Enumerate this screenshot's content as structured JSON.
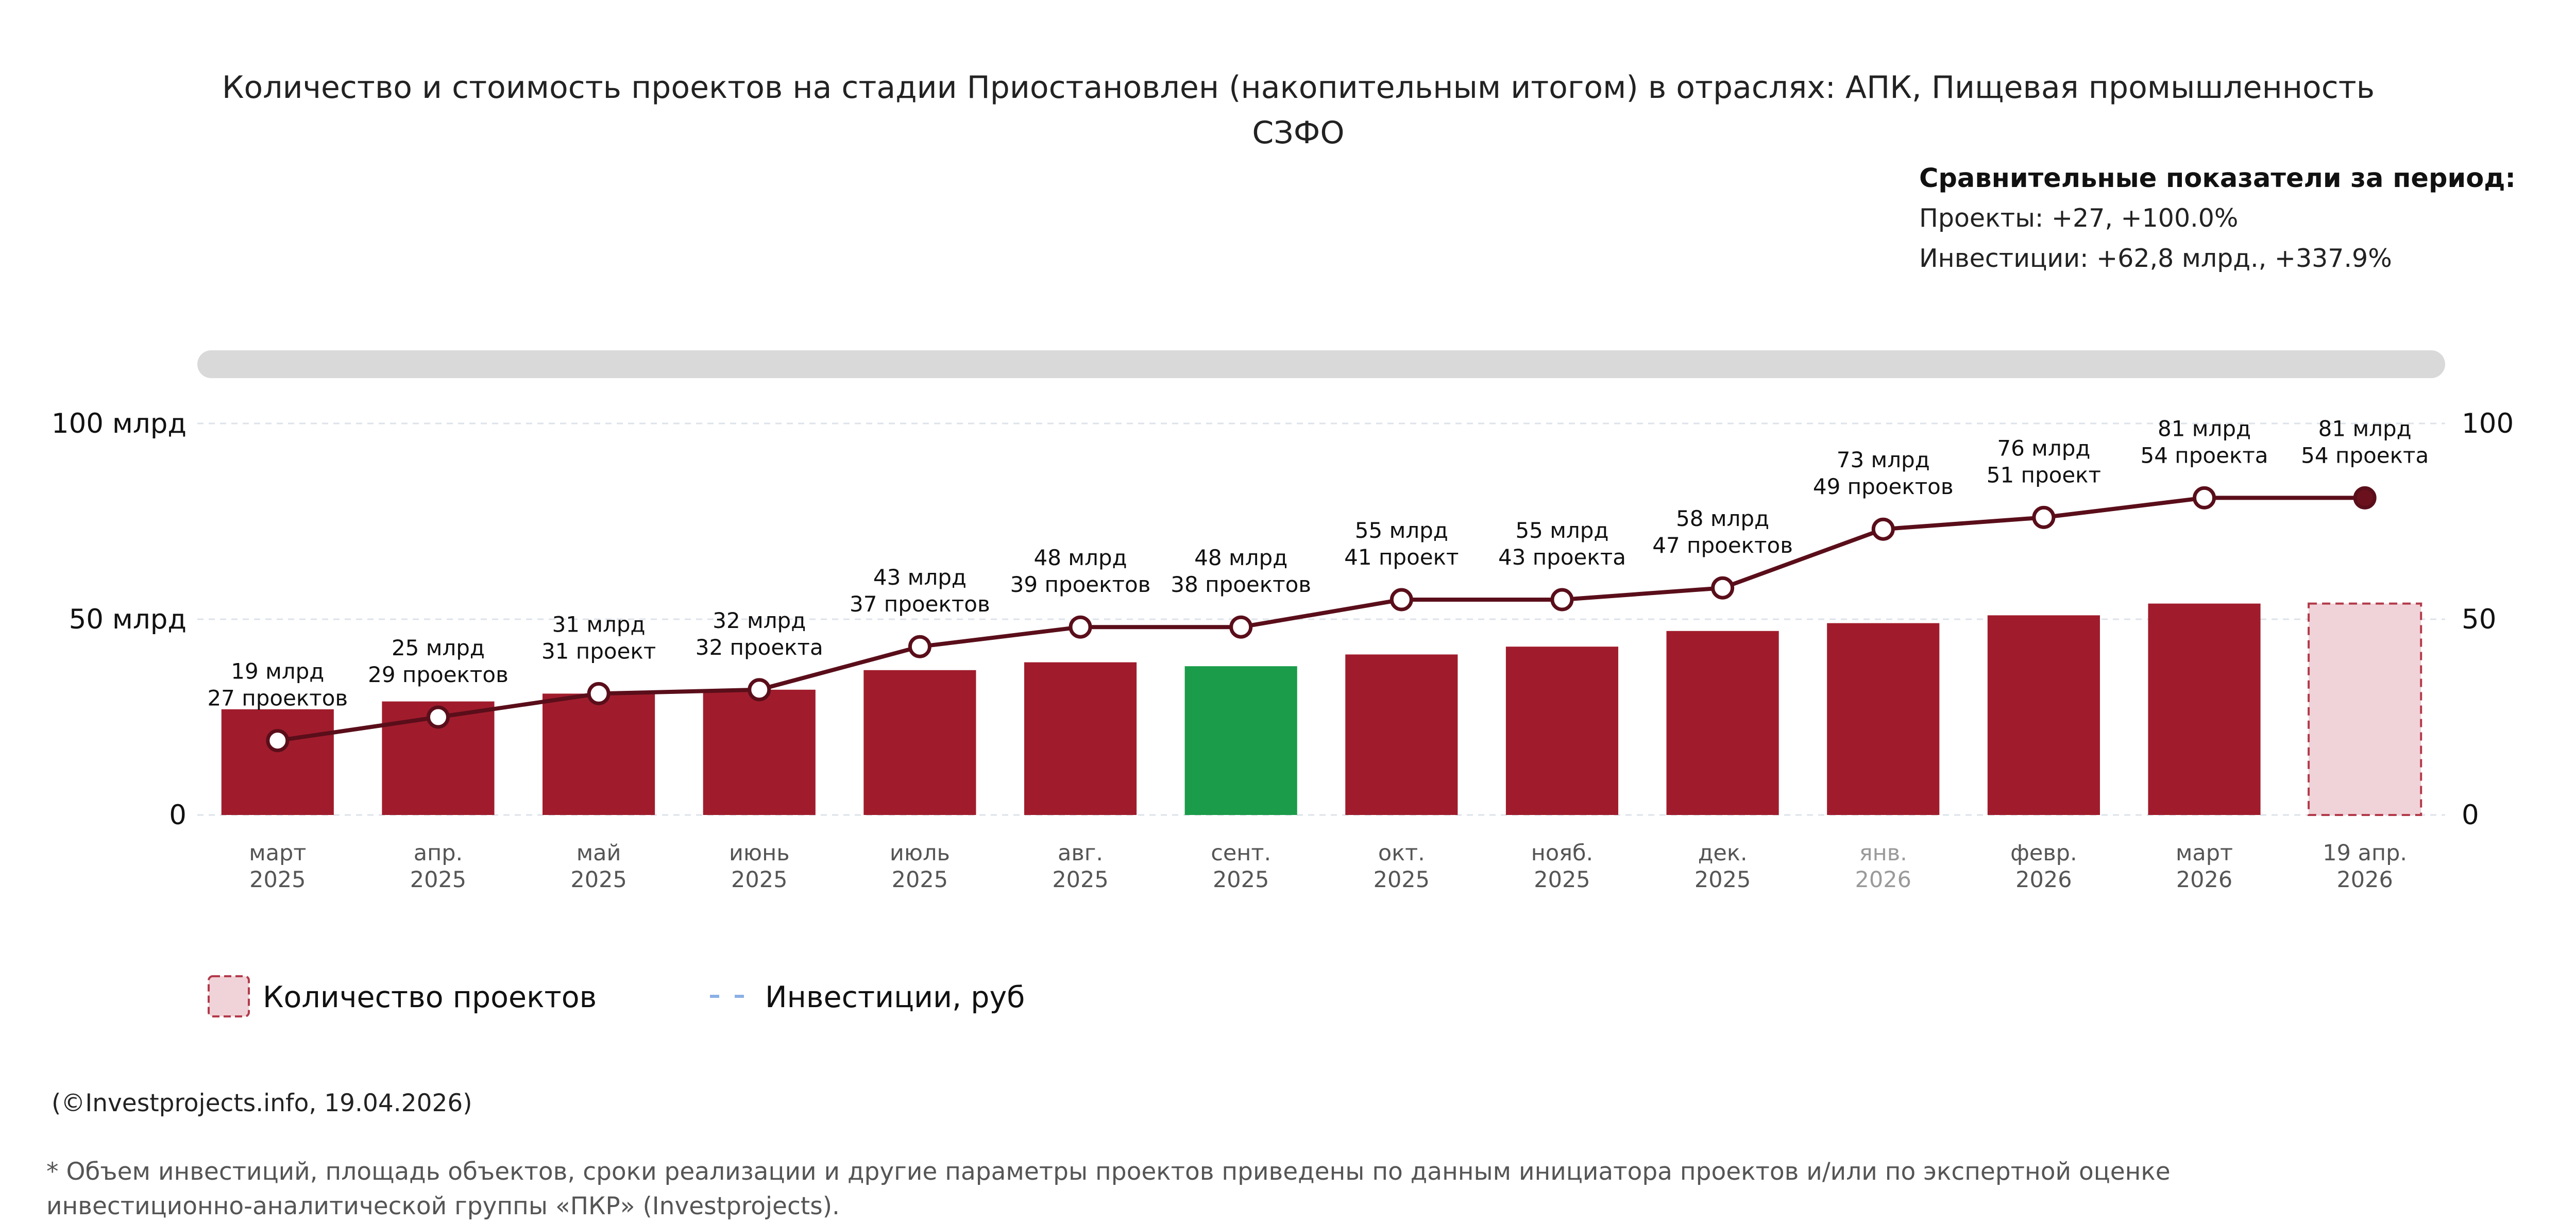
{
  "header": {
    "title_line1": "Количество и стоимость проектов на стадии Приостановлен (накопительным итогом) в отраслях: АПК, Пищевая промышленность",
    "title_line2": "СЗФО"
  },
  "comparison": {
    "heading": "Сравнительные показатели за период:",
    "projects": "Проекты: +27, +100.0%",
    "investments": "Инвестиции: +62,8 млрд., +337.9%"
  },
  "chart_data": {
    "type": "bar+line",
    "title": "Количество и стоимость проектов на стадии Приостановлен (накопительным итогом) в отраслях: АПК, Пищевая промышленность СЗФО",
    "categories": [
      {
        "month": "март",
        "year": "2025"
      },
      {
        "month": "апр.",
        "year": "2025"
      },
      {
        "month": "май",
        "year": "2025"
      },
      {
        "month": "июнь",
        "year": "2025"
      },
      {
        "month": "июль",
        "year": "2025"
      },
      {
        "month": "авг.",
        "year": "2025"
      },
      {
        "month": "сент.",
        "year": "2025"
      },
      {
        "month": "окт.",
        "year": "2025"
      },
      {
        "month": "нояб.",
        "year": "2025"
      },
      {
        "month": "дек.",
        "year": "2025"
      },
      {
        "month": "янв.",
        "year": "2026"
      },
      {
        "month": "февр.",
        "year": "2026"
      },
      {
        "month": "март",
        "year": "2026"
      },
      {
        "month": "19 апр.",
        "year": "2026"
      }
    ],
    "series": [
      {
        "name": "Количество проектов",
        "axis": "right",
        "type": "bar",
        "values": [
          27,
          29,
          31,
          32,
          37,
          39,
          38,
          41,
          43,
          47,
          49,
          51,
          54,
          54
        ]
      },
      {
        "name": "Инвестиции, руб",
        "axis": "left",
        "type": "line",
        "values": [
          19,
          25,
          31,
          32,
          43,
          48,
          48,
          55,
          55,
          58,
          73,
          76,
          81,
          81
        ],
        "unit": "млрд"
      }
    ],
    "data_labels": [
      [
        "19 млрд",
        "27 проектов"
      ],
      [
        "25 млрд",
        "29 проектов"
      ],
      [
        "31 млрд",
        "31 проект"
      ],
      [
        "32 млрд",
        "32 проекта"
      ],
      [
        "43 млрд",
        "37 проектов"
      ],
      [
        "48 млрд",
        "39 проектов"
      ],
      [
        "48 млрд",
        "38 проектов"
      ],
      [
        "55 млрд",
        "41 проект"
      ],
      [
        "55 млрд",
        "43 проекта"
      ],
      [
        "58 млрд",
        "47 проектов"
      ],
      [
        "73 млрд",
        "49 проектов"
      ],
      [
        "76 млрд",
        "51 проект"
      ],
      [
        "81 млрд",
        "54 проекта"
      ],
      [
        "81 млрд",
        "54 проекта"
      ]
    ],
    "y_left": {
      "min": 0,
      "max": 100,
      "ticks": [
        0,
        50,
        100
      ],
      "tick_labels": [
        "0",
        "50 млрд",
        "100 млрд"
      ]
    },
    "y_right": {
      "min": 0,
      "max": 100,
      "ticks": [
        0,
        50,
        100
      ],
      "tick_labels": [
        "0",
        "50",
        "100"
      ]
    },
    "highlight_index": 6,
    "current_index": 13,
    "dimmed_label_index": 10,
    "grid": true,
    "legend_position": "bottom-left",
    "legend": [
      {
        "label": "Количество проектов",
        "kind": "bar"
      },
      {
        "label": "Инвестиции, руб",
        "kind": "line"
      }
    ],
    "colors": {
      "bar": "#a01c2c",
      "highlight_bar": "#1a9c4a",
      "current_bar_fill": "#f0d3d8",
      "current_bar_border": "#b23a4a",
      "line": "#5a0e1a",
      "marker_fill": "#ffffff",
      "current_marker": "#6b111e",
      "grid": "#dde3ea",
      "scrollbar": "#d9d9d9",
      "legend_line": "#8ab0e6"
    }
  },
  "footer": {
    "copyright": "(©Investprojects.info, 19.04.2026)",
    "note_line1": "* Объем инвестиций, площадь объектов, сроки реализации и другие параметры проектов приведены по данным инициатора проектов и/или по экспертной оценке",
    "note_line2": "инвестиционно-аналитической группы «ПКР» (Investprojects)."
  }
}
